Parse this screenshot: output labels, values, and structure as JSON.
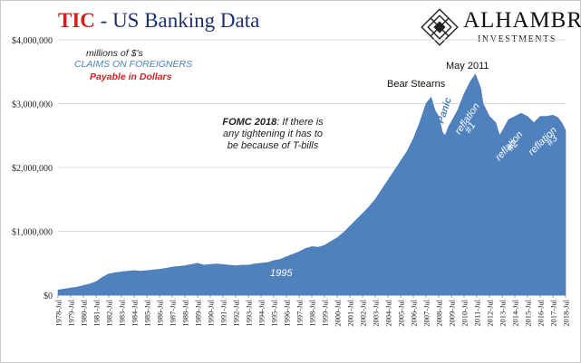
{
  "header": {
    "title_prefix": "TIC",
    "title_rest": " - US Banking Data",
    "logo_name": "ALHAMBRA",
    "logo_sub": "INVESTMENTS",
    "colors": {
      "title_red": "#d21f1f",
      "title_navy": "#1f2f6b",
      "area": "#4f81bd"
    }
  },
  "chart_data": {
    "type": "area",
    "title": "",
    "xlabel": "",
    "ylabel": "",
    "ylim": [
      0,
      4000000
    ],
    "yticks": [
      "$0",
      "$1,000,000",
      "$2,000,000",
      "$3,000,000",
      "$4,000,000"
    ],
    "ytick_values": [
      0,
      1000000,
      2000000,
      3000000,
      4000000
    ],
    "xlim": [
      1978.5,
      2018.5
    ],
    "x_ticks": [
      "1978-Jul",
      "1979-Jul",
      "1980-Jul",
      "1981-Jul",
      "1982-Jul",
      "1983-Jul",
      "1984-Jul",
      "1985-Jul",
      "1986-Jul",
      "1987-Jul",
      "1988-Jul",
      "1989-Jul",
      "1990-Jul",
      "1991-Jul",
      "1992-Jul",
      "1993-Jul",
      "1994-Jul",
      "1995-Jul",
      "1996-Jul",
      "1997-Jul",
      "1998-Jul",
      "1999-Jul",
      "2000-Jul",
      "2001-Jul",
      "2002-Jul",
      "2003-Jul",
      "2004-Jul",
      "2005-Jul",
      "2006-Jul",
      "2007-Jul",
      "2008-Jul",
      "2009-Jul",
      "2010-Jul",
      "2011-Jul",
      "2012-Jul",
      "2013-Jul",
      "2014-Jul",
      "2015-Jul",
      "2016-Jul",
      "2017-Jul",
      "2018-Jul"
    ],
    "series": [
      {
        "values": [
          [
            1978.5,
            80000
          ],
          [
            1979.0,
            95000
          ],
          [
            1979.5,
            110000
          ],
          [
            1980.0,
            125000
          ],
          [
            1980.5,
            150000
          ],
          [
            1981.0,
            175000
          ],
          [
            1981.5,
            210000
          ],
          [
            1982.0,
            280000
          ],
          [
            1982.5,
            330000
          ],
          [
            1983.0,
            350000
          ],
          [
            1983.5,
            365000
          ],
          [
            1984.0,
            375000
          ],
          [
            1984.5,
            385000
          ],
          [
            1985.0,
            375000
          ],
          [
            1985.5,
            385000
          ],
          [
            1986.0,
            395000
          ],
          [
            1986.5,
            405000
          ],
          [
            1987.0,
            420000
          ],
          [
            1987.5,
            440000
          ],
          [
            1988.0,
            450000
          ],
          [
            1988.5,
            460000
          ],
          [
            1989.0,
            480000
          ],
          [
            1989.5,
            500000
          ],
          [
            1990.0,
            470000
          ],
          [
            1990.5,
            480000
          ],
          [
            1991.0,
            490000
          ],
          [
            1991.5,
            480000
          ],
          [
            1992.0,
            470000
          ],
          [
            1992.5,
            460000
          ],
          [
            1993.0,
            470000
          ],
          [
            1993.5,
            470000
          ],
          [
            1994.0,
            490000
          ],
          [
            1994.5,
            500000
          ],
          [
            1995.0,
            510000
          ],
          [
            1995.5,
            540000
          ],
          [
            1996.0,
            560000
          ],
          [
            1996.5,
            600000
          ],
          [
            1997.0,
            640000
          ],
          [
            1997.5,
            680000
          ],
          [
            1998.0,
            730000
          ],
          [
            1998.5,
            760000
          ],
          [
            1999.0,
            750000
          ],
          [
            1999.5,
            780000
          ],
          [
            2000.0,
            840000
          ],
          [
            2000.5,
            900000
          ],
          [
            2001.0,
            980000
          ],
          [
            2001.5,
            1080000
          ],
          [
            2002.0,
            1180000
          ],
          [
            2002.5,
            1280000
          ],
          [
            2003.0,
            1380000
          ],
          [
            2003.5,
            1500000
          ],
          [
            2004.0,
            1650000
          ],
          [
            2004.5,
            1800000
          ],
          [
            2005.0,
            1950000
          ],
          [
            2005.5,
            2100000
          ],
          [
            2006.0,
            2250000
          ],
          [
            2006.5,
            2450000
          ],
          [
            2007.0,
            2700000
          ],
          [
            2007.5,
            3000000
          ],
          [
            2007.9,
            3100000
          ],
          [
            2008.2,
            2900000
          ],
          [
            2008.5,
            2800000
          ],
          [
            2008.8,
            2550000
          ],
          [
            2009.0,
            2500000
          ],
          [
            2009.3,
            2650000
          ],
          [
            2009.6,
            2750000
          ],
          [
            2010.0,
            2900000
          ],
          [
            2010.5,
            3150000
          ],
          [
            2011.0,
            3350000
          ],
          [
            2011.4,
            3460000
          ],
          [
            2011.8,
            3250000
          ],
          [
            2012.0,
            3000000
          ],
          [
            2012.5,
            2800000
          ],
          [
            2013.0,
            2700000
          ],
          [
            2013.3,
            2500000
          ],
          [
            2013.6,
            2600000
          ],
          [
            2014.0,
            2750000
          ],
          [
            2014.5,
            2800000
          ],
          [
            2015.0,
            2850000
          ],
          [
            2015.5,
            2800000
          ],
          [
            2016.0,
            2700000
          ],
          [
            2016.5,
            2800000
          ],
          [
            2017.0,
            2800000
          ],
          [
            2017.5,
            2820000
          ],
          [
            2017.9,
            2780000
          ],
          [
            2018.2,
            2700000
          ],
          [
            2018.5,
            2580000
          ]
        ]
      }
    ],
    "legend": "none",
    "grid": "horizontal",
    "annotations": {
      "units": "millions of $'s",
      "claims": "CLAIMS  ON FOREIGNERS",
      "payable": "Payable  in Dollars",
      "fomc_bold": "FOMC 2018",
      "fomc_rest1": ": If there is",
      "fomc_line2": "any tightening it has to",
      "fomc_line3": "be because of T-bills",
      "bear_stearns": "Bear Stearns",
      "may_2011": "May 2011",
      "panic": "Panic",
      "reflation1_a": "reflation",
      "reflation1_b": "#1",
      "reflation2_a": "reflation",
      "reflation2_b": "#2",
      "reflation3_a": "reflation",
      "reflation3_b": "#3",
      "year_1995": "1995"
    }
  }
}
